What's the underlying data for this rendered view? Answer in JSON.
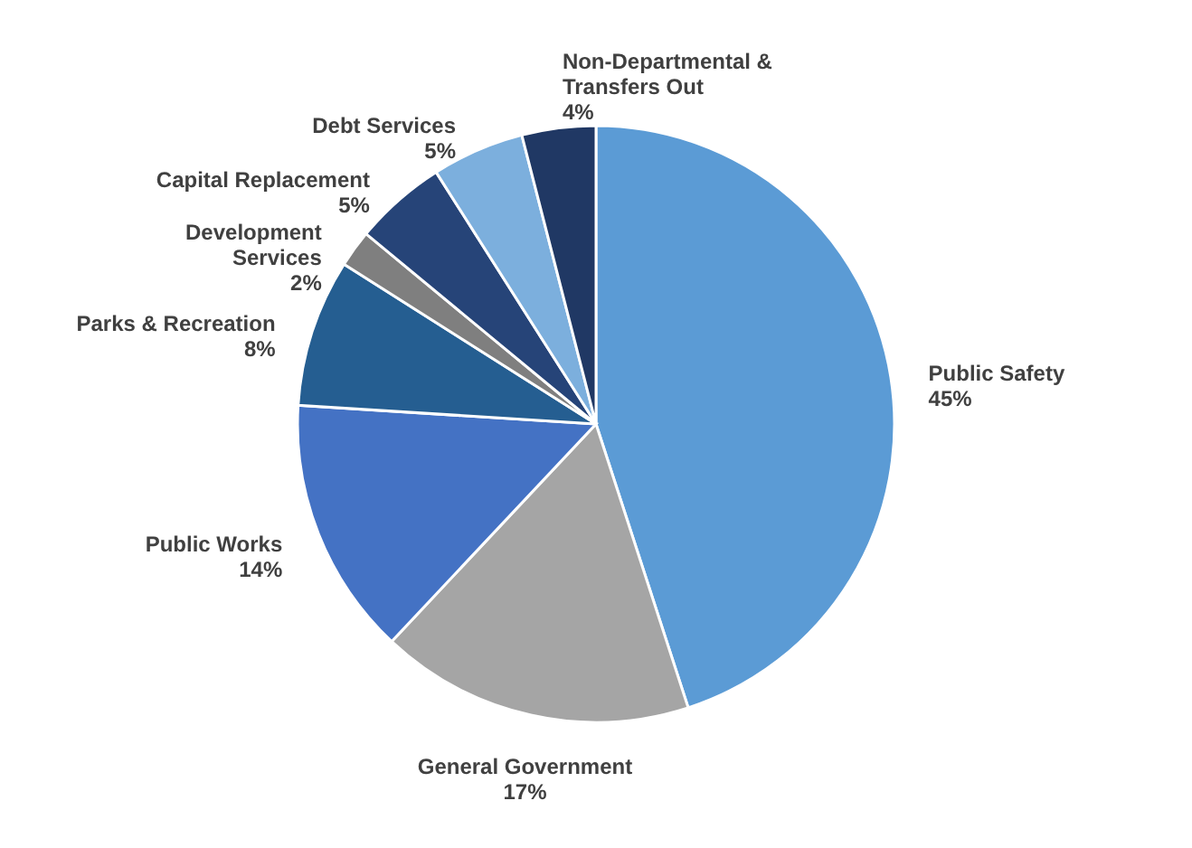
{
  "chart_data": {
    "type": "pie",
    "categories": [
      "Public Safety",
      "General Government",
      "Public Works",
      "Parks & Recreation",
      "Development Services",
      "Capital Replacement",
      "Debt Services",
      "Non-Departmental & Transfers Out"
    ],
    "values": [
      45,
      17,
      14,
      8,
      2,
      5,
      5,
      4
    ],
    "value_labels": [
      "45%",
      "17%",
      "14%",
      "8%",
      "2%",
      "5%",
      "5%",
      "4%"
    ],
    "colors": [
      "#5b9bd5",
      "#a5a5a5",
      "#4472c4",
      "#255e91",
      "#7f7f7f",
      "#264478",
      "#7cafdd",
      "#203864"
    ],
    "legend": false
  }
}
